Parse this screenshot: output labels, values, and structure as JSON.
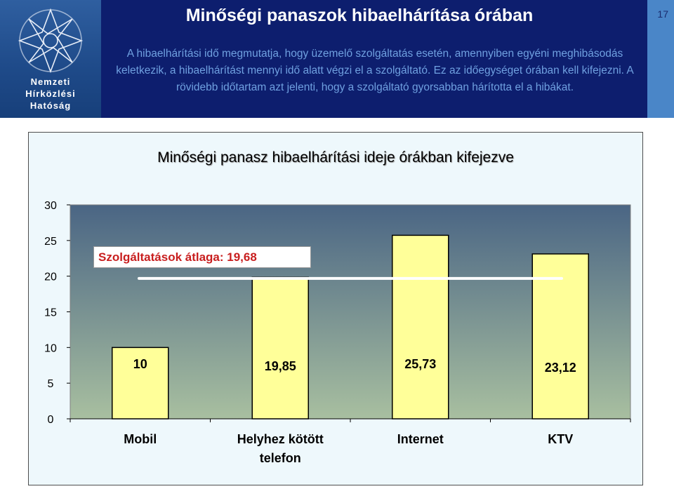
{
  "header": {
    "title": "Minőségi panaszok hibaelhárítása órában",
    "description": "A hibaelhárítási idő megmutatja, hogy üzemelő szolgáltatás esetén, amennyiben egyéni meghibásodás keletkezik, a hibaelhárítást mennyi idő alatt végzi el a szolgáltató. Ez az időegységet órában kell kifejezni. A rövidebb időtartam azt jelenti, hogy a szolgáltató gyorsabban hárította el a hibákat.",
    "page_number": "17"
  },
  "logo": {
    "lines": [
      "Nemzeti",
      "Hírközlési",
      "Hatóság"
    ],
    "icon": "star-network-logo"
  },
  "chart_data": {
    "type": "bar",
    "title": "Minőségi panasz hibaelhárítási ideje órákban kifejezve",
    "categories": [
      "Mobil",
      "Helyhez kötött telefon",
      "Internet",
      "KTV"
    ],
    "values": [
      10,
      19.85,
      25.73,
      23.12
    ],
    "data_labels": [
      "10",
      "19,85",
      "25,73",
      "23,12"
    ],
    "ylim": [
      0,
      30
    ],
    "yticks": [
      0,
      5,
      10,
      15,
      20,
      25,
      30
    ],
    "average": {
      "label": "Szolgáltatások átlaga: 19,68",
      "value": 19.68
    },
    "colors": {
      "bar": "#ffff99",
      "plot_top": "#4a6584",
      "plot_bottom": "#a8bfa0",
      "average_line": "#ffffff",
      "label_text": "#c81e1e"
    },
    "grid": false,
    "legend": "none"
  }
}
